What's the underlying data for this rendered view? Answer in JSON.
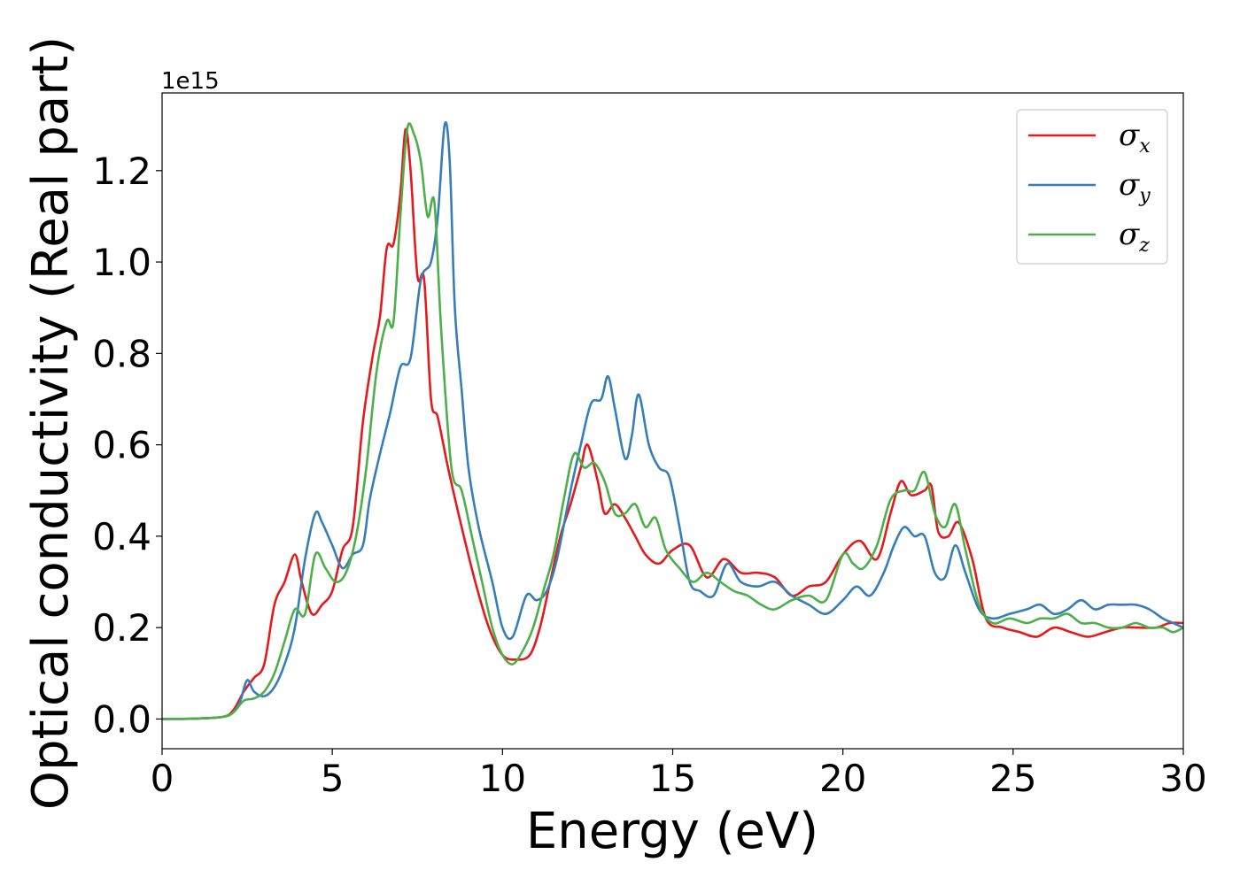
{
  "chart_data": {
    "type": "line",
    "xlabel": "Energy (eV)",
    "ylabel": "Optical conductivity (Real part)",
    "y_offset_label": "1e15",
    "xlim": [
      0,
      30
    ],
    "ylim": [
      -0.065,
      1.37
    ],
    "x_ticks": [
      0,
      5,
      10,
      15,
      20,
      25,
      30
    ],
    "y_ticks": [
      0.0,
      0.2,
      0.4,
      0.6,
      0.8,
      1.0,
      1.2
    ],
    "y_tick_labels": [
      "0.0",
      "0.2",
      "0.4",
      "0.6",
      "0.8",
      "1.0",
      "1.2"
    ],
    "grid": false,
    "legend_position": "top-right",
    "series": [
      {
        "name": "σx",
        "symbol": "σ",
        "subscript": "x",
        "color": "#e41a1c",
        "x": [
          0,
          1,
          1.8,
          2.1,
          2.4,
          2.7,
          3.0,
          3.3,
          3.6,
          3.9,
          4.1,
          4.4,
          4.7,
          5.0,
          5.3,
          5.6,
          5.9,
          6.2,
          6.4,
          6.6,
          6.8,
          7.0,
          7.15,
          7.3,
          7.5,
          7.7,
          7.9,
          8.1,
          8.4,
          8.8,
          9.2,
          9.6,
          10.0,
          10.4,
          10.8,
          11.1,
          11.4,
          11.7,
          12.0,
          12.3,
          12.5,
          12.8,
          13.0,
          13.3,
          13.6,
          13.9,
          14.2,
          14.6,
          15.0,
          15.5,
          16.0,
          16.5,
          17.0,
          17.5,
          18.0,
          18.5,
          19.0,
          19.5,
          20.0,
          20.5,
          21.0,
          21.4,
          21.7,
          22.0,
          22.4,
          22.6,
          22.8,
          23.1,
          23.4,
          23.8,
          24.2,
          24.7,
          25.2,
          25.7,
          26.2,
          26.7,
          27.2,
          27.7,
          28.2,
          28.7,
          29.2,
          29.6,
          30.0
        ],
        "y": [
          0.0,
          0.001,
          0.005,
          0.02,
          0.06,
          0.09,
          0.12,
          0.25,
          0.3,
          0.36,
          0.3,
          0.23,
          0.25,
          0.28,
          0.37,
          0.42,
          0.65,
          0.8,
          0.88,
          1.03,
          1.04,
          1.15,
          1.29,
          1.2,
          0.97,
          0.96,
          0.7,
          0.66,
          0.55,
          0.42,
          0.3,
          0.2,
          0.14,
          0.13,
          0.14,
          0.2,
          0.3,
          0.4,
          0.47,
          0.55,
          0.6,
          0.52,
          0.45,
          0.47,
          0.44,
          0.4,
          0.36,
          0.34,
          0.37,
          0.38,
          0.31,
          0.35,
          0.32,
          0.32,
          0.31,
          0.27,
          0.29,
          0.3,
          0.36,
          0.39,
          0.35,
          0.45,
          0.52,
          0.49,
          0.5,
          0.51,
          0.41,
          0.4,
          0.43,
          0.35,
          0.22,
          0.2,
          0.19,
          0.18,
          0.2,
          0.19,
          0.18,
          0.19,
          0.2,
          0.2,
          0.2,
          0.21,
          0.21
        ]
      },
      {
        "name": "σy",
        "symbol": "σ",
        "subscript": "y",
        "color": "#377eb8",
        "x": [
          0,
          1,
          1.8,
          2.1,
          2.3,
          2.5,
          2.7,
          3.0,
          3.3,
          3.6,
          3.9,
          4.2,
          4.5,
          4.7,
          5.0,
          5.3,
          5.6,
          5.9,
          6.1,
          6.4,
          6.7,
          7.0,
          7.3,
          7.6,
          7.9,
          8.1,
          8.3,
          8.45,
          8.6,
          8.8,
          9.0,
          9.3,
          9.7,
          10.0,
          10.3,
          10.7,
          11.0,
          11.3,
          11.6,
          12.0,
          12.3,
          12.6,
          12.9,
          13.1,
          13.3,
          13.6,
          13.8,
          14.0,
          14.3,
          14.6,
          14.9,
          15.2,
          15.5,
          15.8,
          16.2,
          16.6,
          17.0,
          17.5,
          18.0,
          18.5,
          19.0,
          19.5,
          20.0,
          20.4,
          20.8,
          21.2,
          21.5,
          21.8,
          22.1,
          22.4,
          22.7,
          23.0,
          23.3,
          23.6,
          24.0,
          24.4,
          24.9,
          25.4,
          25.8,
          26.2,
          26.6,
          27.0,
          27.4,
          27.8,
          28.2,
          28.6,
          29.0,
          29.4,
          29.7,
          30.0
        ],
        "y": [
          0.0,
          0.001,
          0.005,
          0.015,
          0.04,
          0.085,
          0.06,
          0.05,
          0.07,
          0.12,
          0.2,
          0.35,
          0.45,
          0.43,
          0.38,
          0.33,
          0.36,
          0.38,
          0.48,
          0.58,
          0.67,
          0.77,
          0.79,
          0.96,
          1.0,
          1.1,
          1.3,
          1.22,
          0.9,
          0.72,
          0.55,
          0.42,
          0.3,
          0.2,
          0.18,
          0.27,
          0.26,
          0.28,
          0.35,
          0.5,
          0.6,
          0.69,
          0.7,
          0.75,
          0.68,
          0.57,
          0.62,
          0.71,
          0.6,
          0.55,
          0.53,
          0.42,
          0.3,
          0.28,
          0.27,
          0.34,
          0.3,
          0.29,
          0.3,
          0.27,
          0.25,
          0.23,
          0.26,
          0.29,
          0.27,
          0.32,
          0.38,
          0.42,
          0.4,
          0.4,
          0.32,
          0.31,
          0.38,
          0.32,
          0.24,
          0.22,
          0.23,
          0.24,
          0.25,
          0.23,
          0.24,
          0.26,
          0.24,
          0.25,
          0.25,
          0.25,
          0.24,
          0.22,
          0.21,
          0.2
        ]
      },
      {
        "name": "σz",
        "symbol": "σ",
        "subscript": "z",
        "color": "#4daf4a",
        "x": [
          0,
          1,
          1.8,
          2.1,
          2.4,
          2.7,
          3.0,
          3.3,
          3.6,
          3.9,
          4.2,
          4.5,
          4.8,
          5.1,
          5.4,
          5.7,
          6.0,
          6.3,
          6.6,
          6.8,
          7.0,
          7.2,
          7.4,
          7.6,
          7.8,
          8.0,
          8.2,
          8.5,
          8.8,
          9.1,
          9.4,
          9.7,
          10.0,
          10.3,
          10.6,
          10.9,
          11.2,
          11.5,
          11.8,
          12.1,
          12.4,
          12.7,
          13.0,
          13.3,
          13.6,
          13.9,
          14.2,
          14.5,
          14.8,
          15.2,
          15.6,
          16.0,
          16.4,
          16.8,
          17.2,
          17.6,
          18.0,
          18.5,
          19.0,
          19.5,
          20.0,
          20.3,
          20.6,
          21.0,
          21.4,
          21.8,
          22.1,
          22.4,
          22.7,
          23.0,
          23.3,
          23.6,
          24.0,
          24.4,
          24.9,
          25.4,
          25.8,
          26.2,
          26.6,
          27.0,
          27.4,
          27.8,
          28.2,
          28.6,
          29.0,
          29.4,
          29.7,
          30.0
        ],
        "y": [
          0.0,
          0.001,
          0.005,
          0.015,
          0.04,
          0.045,
          0.06,
          0.1,
          0.17,
          0.24,
          0.23,
          0.36,
          0.33,
          0.3,
          0.32,
          0.4,
          0.55,
          0.76,
          0.87,
          0.87,
          1.1,
          1.29,
          1.28,
          1.22,
          1.1,
          1.13,
          0.85,
          0.55,
          0.5,
          0.4,
          0.3,
          0.2,
          0.14,
          0.12,
          0.15,
          0.2,
          0.28,
          0.36,
          0.48,
          0.58,
          0.55,
          0.56,
          0.52,
          0.45,
          0.45,
          0.47,
          0.42,
          0.44,
          0.37,
          0.33,
          0.3,
          0.32,
          0.3,
          0.28,
          0.27,
          0.25,
          0.24,
          0.26,
          0.27,
          0.26,
          0.36,
          0.34,
          0.33,
          0.38,
          0.48,
          0.5,
          0.5,
          0.54,
          0.45,
          0.42,
          0.47,
          0.37,
          0.25,
          0.21,
          0.22,
          0.21,
          0.22,
          0.22,
          0.23,
          0.21,
          0.21,
          0.2,
          0.2,
          0.21,
          0.2,
          0.2,
          0.19,
          0.2
        ]
      }
    ]
  }
}
